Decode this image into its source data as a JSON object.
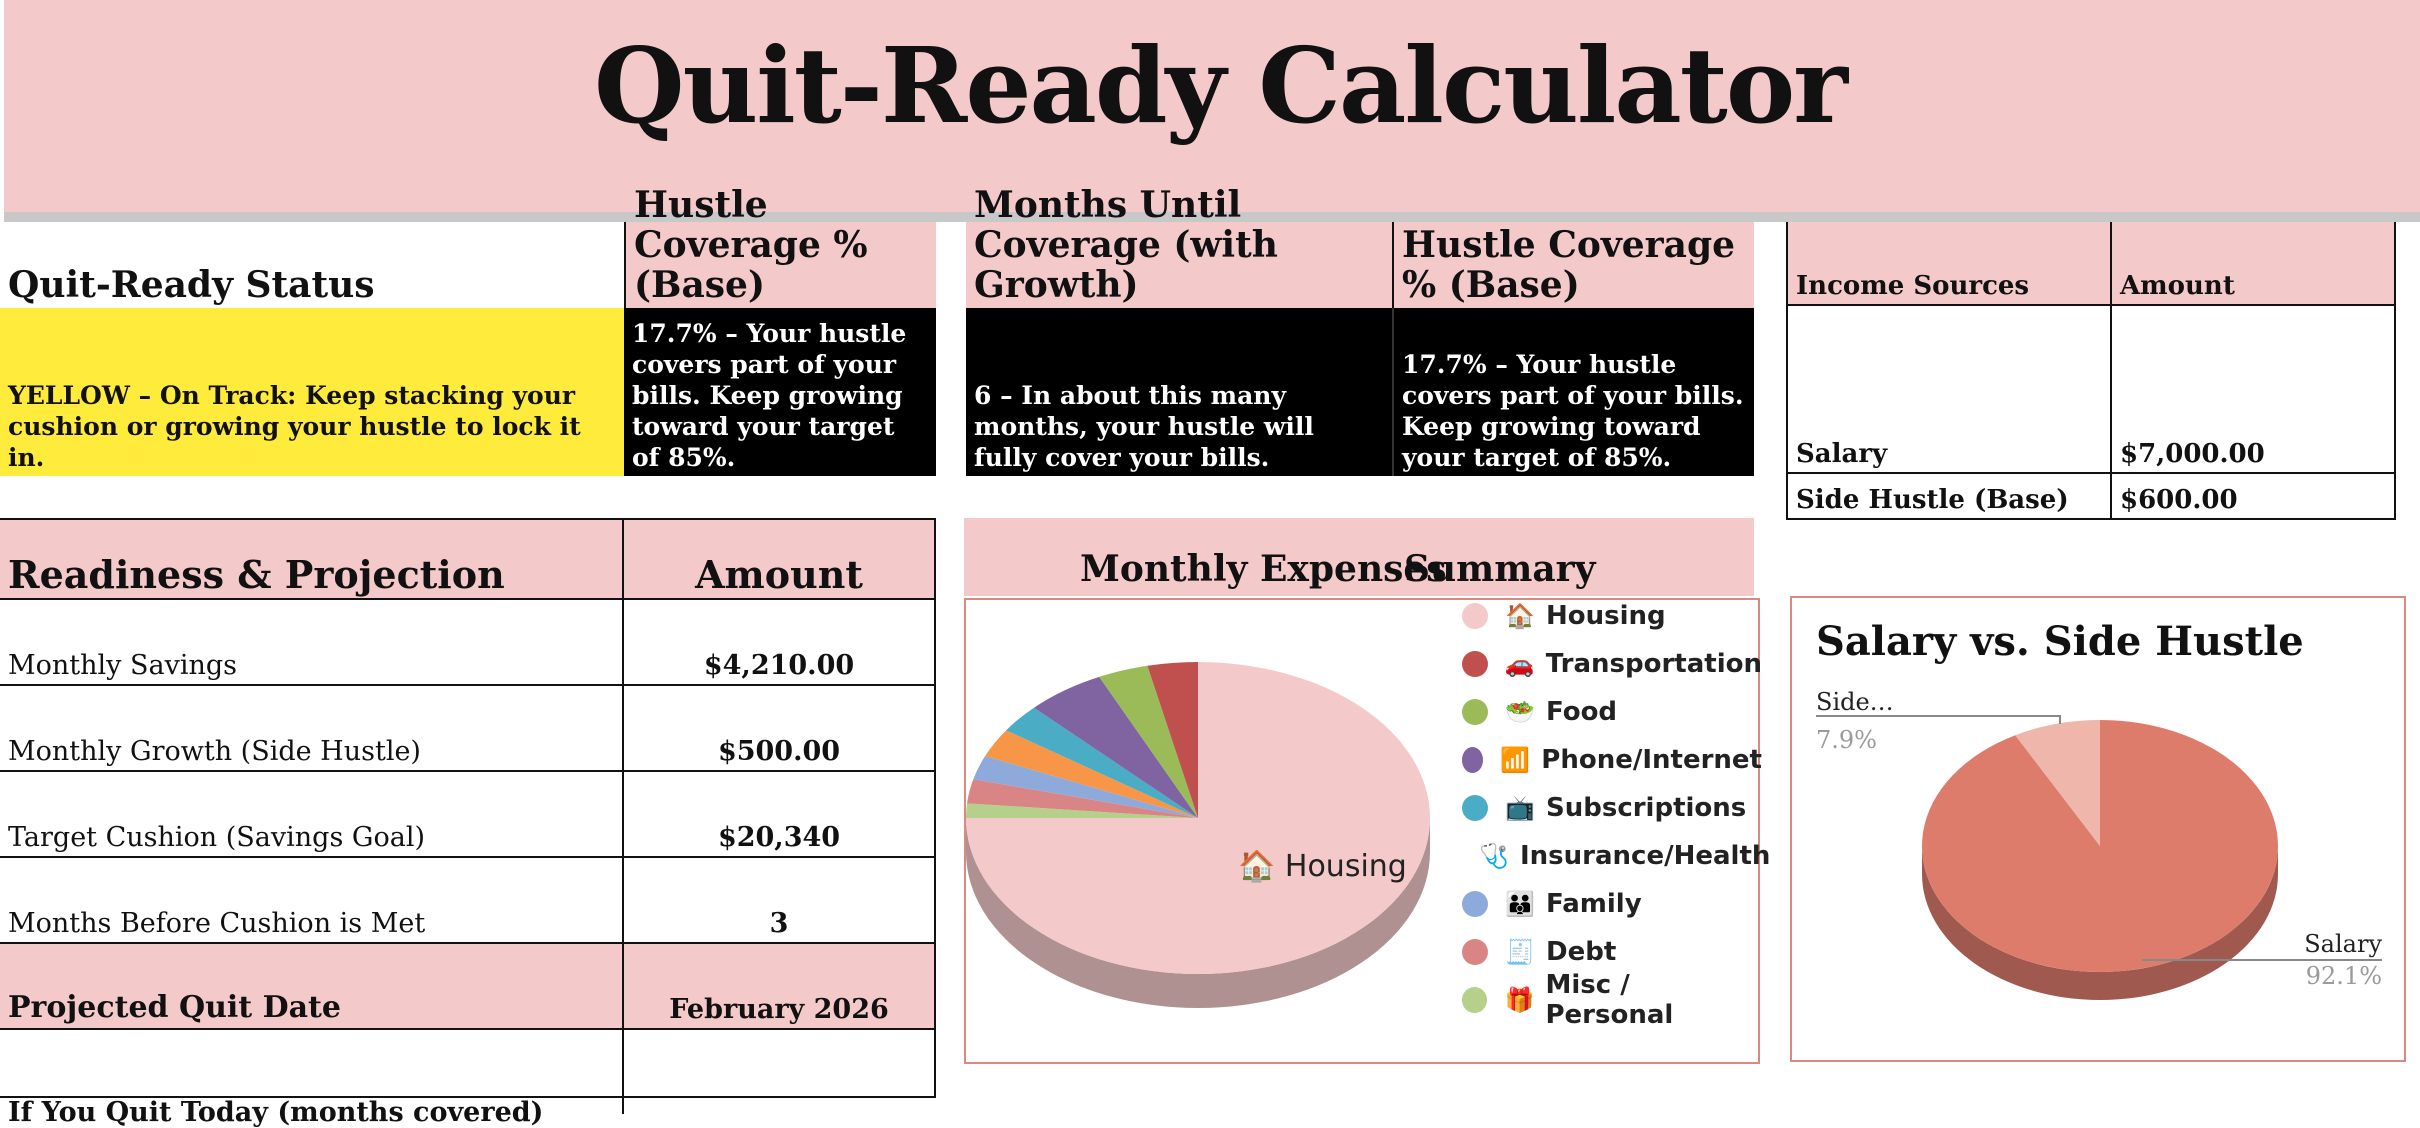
{
  "title": "Quit-Ready Calculator",
  "status": {
    "header": "Quit-Ready Status",
    "value": "YELLOW – On Track: Keep stacking your cushion or growing your hustle to lock it in."
  },
  "coverage_base": {
    "header": "Hustle Coverage % (Base)",
    "value": "17.7% – Your hustle covers part of your bills. Keep growing toward your target of 85%."
  },
  "months_growth": {
    "header": "Months Until Coverage (with Growth)",
    "value": "6 – In about this many months, your hustle will fully cover your bills."
  },
  "coverage_base2": {
    "header": "Hustle Coverage % (Base)",
    "value": "17.7% – Your hustle covers part of your bills. Keep growing toward your target of 85%."
  },
  "income": {
    "col1": "Income Sources",
    "col2": "Amount",
    "rows": [
      {
        "label": "Salary",
        "amount": "$7,000.00"
      },
      {
        "label": "Side Hustle (Base)",
        "amount": "$600.00"
      }
    ]
  },
  "readiness": {
    "header": "Readiness & Projection",
    "amount_header": "Amount",
    "rows": [
      {
        "label": "Monthly Savings",
        "amount": "$4,210.00"
      },
      {
        "label": "Monthly Growth (Side Hustle)",
        "amount": "$500.00"
      },
      {
        "label": "Target Cushion (Savings Goal)",
        "amount": "$20,340"
      },
      {
        "label": "Months Before Cushion is Met",
        "amount": "3"
      }
    ],
    "projected_label": "Projected Quit Date",
    "projected_value": "February 2026",
    "partial_row": "If You Quit Today (months covered)"
  },
  "expenses_header": {
    "part1": "Monthly Expenses",
    "part2": "Summary"
  },
  "chart_data": [
    {
      "type": "pie",
      "title": "",
      "slice_label": "🏠 Housing",
      "categories": [
        "Housing",
        "Transportation",
        "Food",
        "Phone/Internet",
        "Subscriptions",
        "Insurance/Health",
        "Family",
        "Debt",
        "Misc / Personal"
      ],
      "legend_icons": [
        "🏠",
        "🚗",
        "🥗",
        "📶",
        "📺",
        "🩺",
        "👪",
        "🧾",
        "🎁"
      ],
      "values": [
        75.0,
        3.5,
        3.5,
        5.5,
        3.0,
        3.0,
        2.5,
        2.5,
        1.5
      ],
      "colors": [
        "#f4c9ca",
        "#c0504d",
        "#9bbb59",
        "#8064a2",
        "#4bacc6",
        "#f79646",
        "#8eaadb",
        "#d98585",
        "#b4d08a"
      ],
      "legend_position": "right"
    },
    {
      "type": "pie",
      "title": "Salary vs. Side Hustle",
      "categories": [
        "Salary",
        "Side…"
      ],
      "values": [
        92.1,
        7.9
      ],
      "labels": [
        "92.1%",
        "7.9%"
      ],
      "colors": [
        "#de7c6c",
        "#efb6ac"
      ]
    }
  ]
}
